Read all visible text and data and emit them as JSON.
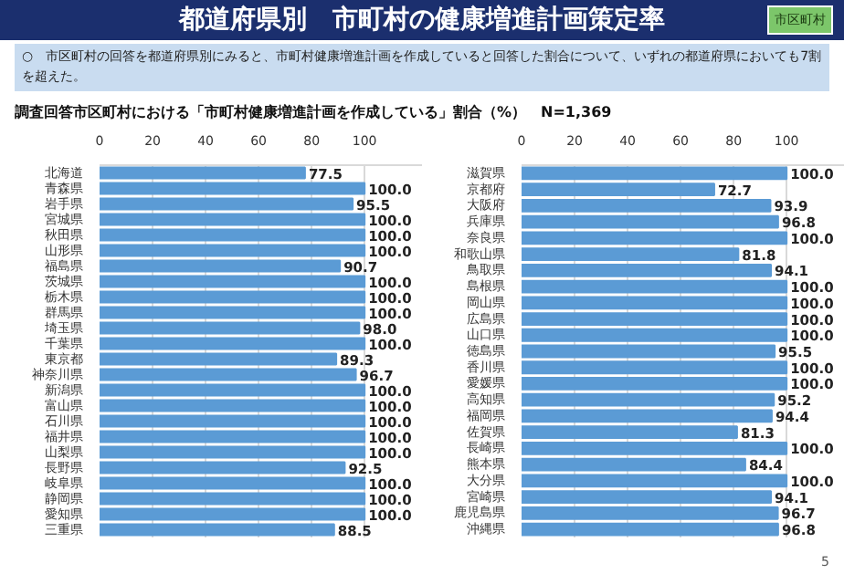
{
  "chart_data": [
    {
      "type": "bar",
      "orientation": "horizontal",
      "title": "都道府県別　市町村の健康増進計画策定率",
      "subtitle": "調査回答市区町村における「市町村健康増進計画を作成している」割合（%）　N=1,369",
      "annotations": [
        "市区町村",
        "○　市区町村の回答を都道府県別にみると、市町村健康増進計画を作成していると回答した割合について、いずれの都道府県においても7割を超えた。",
        "5"
      ],
      "categories": [
        "北海道",
        "青森県",
        "岩手県",
        "宮城県",
        "秋田県",
        "山形県",
        "福島県",
        "茨城県",
        "栃木県",
        "群馬県",
        "埼玉県",
        "千葉県",
        "東京都",
        "神奈川県",
        "新潟県",
        "富山県",
        "石川県",
        "福井県",
        "山梨県",
        "長野県",
        "岐阜県",
        "静岡県",
        "愛知県",
        "三重県"
      ],
      "values": [
        77.5,
        100,
        95.5,
        100,
        100,
        100,
        90.7,
        100,
        100,
        100,
        98.0,
        100,
        89.3,
        96.7,
        100,
        100,
        100,
        100,
        100,
        92.5,
        100,
        100,
        100,
        88.5
      ],
      "value_labels": [
        "77.5",
        "100.0",
        "95.5",
        "100.0",
        "100.0",
        "100.0",
        "90.7",
        "100.0",
        "100.0",
        "100.0",
        "98.0",
        "100.0",
        "89.3",
        "96.7",
        "100.0",
        "100.0",
        "100.0",
        "100.0",
        "100.0",
        "92.5",
        "100.0",
        "100.0",
        "100.0",
        "88.5"
      ],
      "color": "#5b9bd5",
      "xlim": [
        0,
        122
      ],
      "xticks": [
        0,
        20,
        40,
        60,
        80,
        100
      ],
      "grid": "x"
    },
    {
      "type": "bar",
      "orientation": "horizontal",
      "categories": [
        "滋賀県",
        "京都府",
        "大阪府",
        "兵庫県",
        "奈良県",
        "和歌山県",
        "鳥取県",
        "島根県",
        "岡山県",
        "広島県",
        "山口県",
        "徳島県",
        "香川県",
        "愛媛県",
        "高知県",
        "福岡県",
        "佐賀県",
        "長崎県",
        "熊本県",
        "大分県",
        "宮崎県",
        "鹿児島県",
        "沖縄県"
      ],
      "values": [
        100,
        72.7,
        93.9,
        96.8,
        100,
        81.8,
        94.1,
        100,
        100,
        100,
        100,
        95.5,
        100,
        100,
        95.2,
        94.4,
        81.3,
        100,
        84.4,
        100,
        94.1,
        96.7,
        96.8
      ],
      "value_labels": [
        "100.0",
        "72.7",
        "93.9",
        "96.8",
        "100.0",
        "81.8",
        "94.1",
        "100.0",
        "100.0",
        "100.0",
        "100.0",
        "95.5",
        "100.0",
        "100.0",
        "95.2",
        "94.4",
        "81.3",
        "100.0",
        "84.4",
        "100.0",
        "94.1",
        "96.7",
        "96.8"
      ],
      "color": "#5b9bd5",
      "xlim": [
        0,
        122
      ],
      "xticks": [
        0,
        20,
        40,
        60,
        80,
        100
      ],
      "grid": "x"
    }
  ]
}
